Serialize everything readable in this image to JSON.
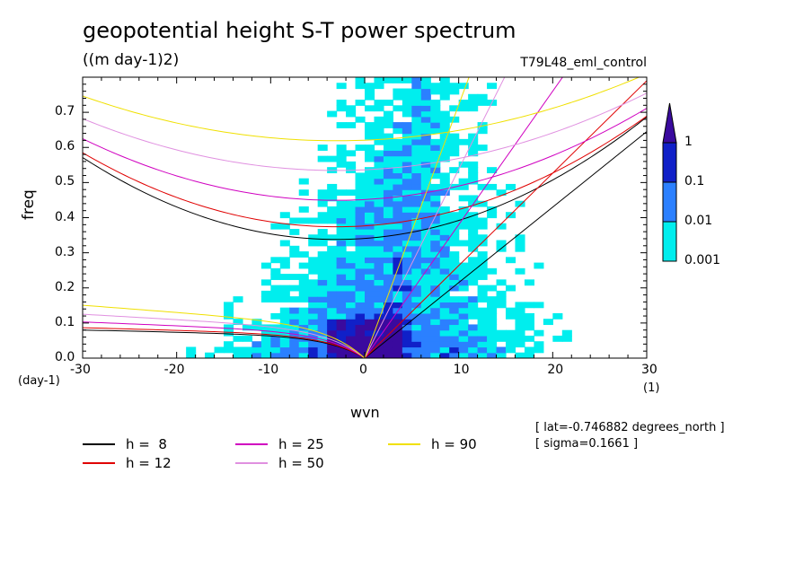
{
  "title": "geopotential height S-T power spectrum",
  "units": "((m day-1)2)",
  "run_name": "T79L48_eml_control",
  "info": {
    "lat": "[ lat=-0.746882 degrees_north ]",
    "sigma": "[ sigma=0.1661 ]"
  },
  "chart_data": {
    "type": "heatmap",
    "title": "geopotential height S-T power spectrum",
    "xlabel": "wvn",
    "ylabel": "freq",
    "x_unit": "(1)",
    "y_unit": "(day-1)",
    "xlim": [
      -30,
      30
    ],
    "ylim": [
      0,
      0.8
    ],
    "x_ticks": [
      -30,
      -20,
      -10,
      0,
      10,
      20,
      30
    ],
    "y_ticks": [
      0.0,
      0.1,
      0.2,
      0.3,
      0.4,
      0.5,
      0.6,
      0.7
    ],
    "x_tick_labels": [
      "-30",
      "-20",
      "-10",
      "0",
      "10",
      "20",
      "30"
    ],
    "y_tick_labels": [
      "0.0",
      "0.1",
      "0.2",
      "0.3",
      "0.4",
      "0.5",
      "0.6",
      "0.7"
    ],
    "colorbar": {
      "levels": [
        0.001,
        0.01,
        0.1,
        1
      ],
      "labels": [
        "0.001",
        "0.01",
        "0.1",
        "1"
      ],
      "colors": [
        "#00eeee",
        "#2b80ff",
        "#1020c8",
        "#3a0a9e"
      ],
      "extend": "max"
    },
    "dispersion_curves": [
      {
        "name": "h =  8",
        "h": 8,
        "color": "#000000"
      },
      {
        "name": "h = 12",
        "h": 12,
        "color": "#e00000"
      },
      {
        "name": "h = 25",
        "h": 25,
        "color": "#d000c0"
      },
      {
        "name": "h = 50",
        "h": 50,
        "color": "#e090e0"
      },
      {
        "name": "h = 90",
        "h": 90,
        "color": "#f0e000"
      }
    ],
    "grid": false,
    "legend_position": "bottom-left"
  }
}
